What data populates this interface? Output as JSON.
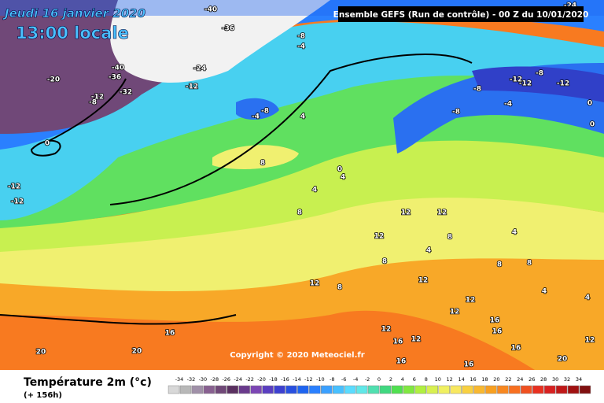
{
  "header": {
    "date": "Jeudi 16 janvier 2020",
    "time": "13:00 locale",
    "model": "Ensemble GEFS  (Run de contrôle)  - 00 Z du 10/01/2020"
  },
  "copyright": "Copyright © 2020 Meteociel.fr",
  "legend": {
    "title": "Température 2m (°c)",
    "lead": "(+ 156h)",
    "ticks": [
      -34,
      -32,
      -30,
      -28,
      -26,
      -24,
      -22,
      -20,
      -18,
      -16,
      -14,
      -12,
      -10,
      -8,
      -6,
      -4,
      -2,
      0,
      2,
      4,
      6,
      8,
      10,
      12,
      14,
      16,
      18,
      20,
      22,
      24,
      26,
      28,
      30,
      32,
      34
    ],
    "colors": [
      "#d8d8d8",
      "#b8b8b8",
      "#a090a8",
      "#886090",
      "#704878",
      "#5a3060",
      "#6a3a8c",
      "#7c46b4",
      "#5a3ec0",
      "#3c40d0",
      "#2850e0",
      "#1e64f0",
      "#2a80ff",
      "#3aa0ff",
      "#48c0ff",
      "#5adcff",
      "#60e8e8",
      "#50e0b0",
      "#40d880",
      "#50e050",
      "#80e840",
      "#b0f040",
      "#d8f050",
      "#f0f060",
      "#f8e860",
      "#f8d040",
      "#f8b830",
      "#f8a020",
      "#f88820",
      "#f87020",
      "#f05020",
      "#e83020",
      "#d82020",
      "#c01818",
      "#a01010",
      "#801010"
    ]
  },
  "contours": [
    "-40",
    "-36",
    "-40",
    "-36",
    "-20",
    "-24",
    "-32",
    "-12",
    "-8",
    "-4",
    "-8",
    "-4",
    "4",
    "0",
    "8",
    "0",
    "4",
    "4",
    "8",
    "12",
    "12",
    "12",
    "8",
    "4",
    "8",
    "4",
    "12",
    "8",
    "12",
    "12",
    "12",
    "16",
    "20",
    "20",
    "12",
    "16",
    "12",
    "16",
    "16",
    "16",
    "16",
    "16",
    "20",
    "12",
    "-12",
    "-8",
    "-12",
    "-12",
    "-8",
    "-4",
    "-8",
    "0",
    "0",
    "4",
    "4",
    "8",
    "8",
    "-24",
    "-12",
    "-12",
    "-12",
    "-8"
  ]
}
